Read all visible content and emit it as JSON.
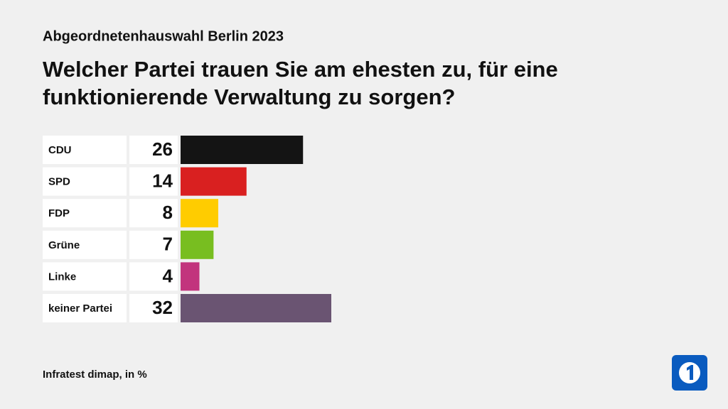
{
  "chart_data": {
    "type": "bar",
    "subtitle": "Abgeordnetenhauswahl Berlin 2023",
    "title": [
      "Welcher Partei trauen Sie am ehesten zu, für eine",
      "funktionierende Verwaltung zu sorgen?"
    ],
    "categories": [
      "CDU",
      "SPD",
      "FDP",
      "Grüne",
      "Linke",
      "keiner Partei"
    ],
    "values": [
      26,
      14,
      8,
      7,
      4,
      32
    ],
    "colors": [
      "#141414",
      "#d92020",
      "#ffcc00",
      "#78be20",
      "#c2347d",
      "#6a5472"
    ],
    "source": "Infratest dimap, in %"
  }
}
